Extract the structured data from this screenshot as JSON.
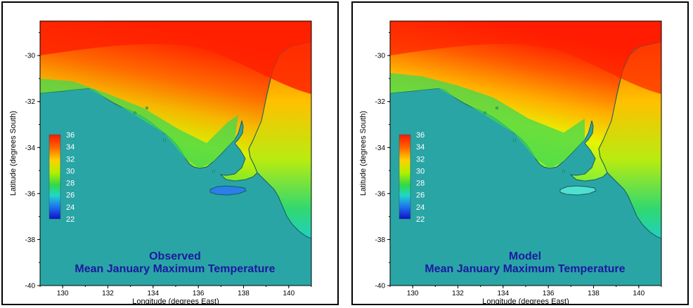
{
  "colors": {
    "sea": "#2aa5a5",
    "coast": "#1a5a60",
    "title": "#1a1aa0",
    "legend_text": "#ffffff"
  },
  "axes": {
    "xlabel": "Longitude  (degrees East)",
    "ylabel": "Latitude  (degrees South)",
    "x_ticks": [
      "130",
      "132",
      "134",
      "136",
      "138",
      "140"
    ],
    "y_ticks": [
      "-30",
      "-32",
      "-34",
      "-36",
      "-38",
      "-40"
    ],
    "xlim": [
      129,
      141
    ],
    "ylim": [
      -40,
      -28.5
    ]
  },
  "legend": {
    "labels": [
      "36",
      "34",
      "32",
      "30",
      "28",
      "26",
      "24",
      "22"
    ],
    "values": [
      36,
      34,
      32,
      30,
      28,
      26,
      24,
      22
    ]
  },
  "panels": [
    {
      "title_line1": "Observed",
      "title_line2": "Mean January Maximum Temperature"
    },
    {
      "title_line1": "Model",
      "title_line2": "Mean January Maximum Temperature"
    }
  ]
}
